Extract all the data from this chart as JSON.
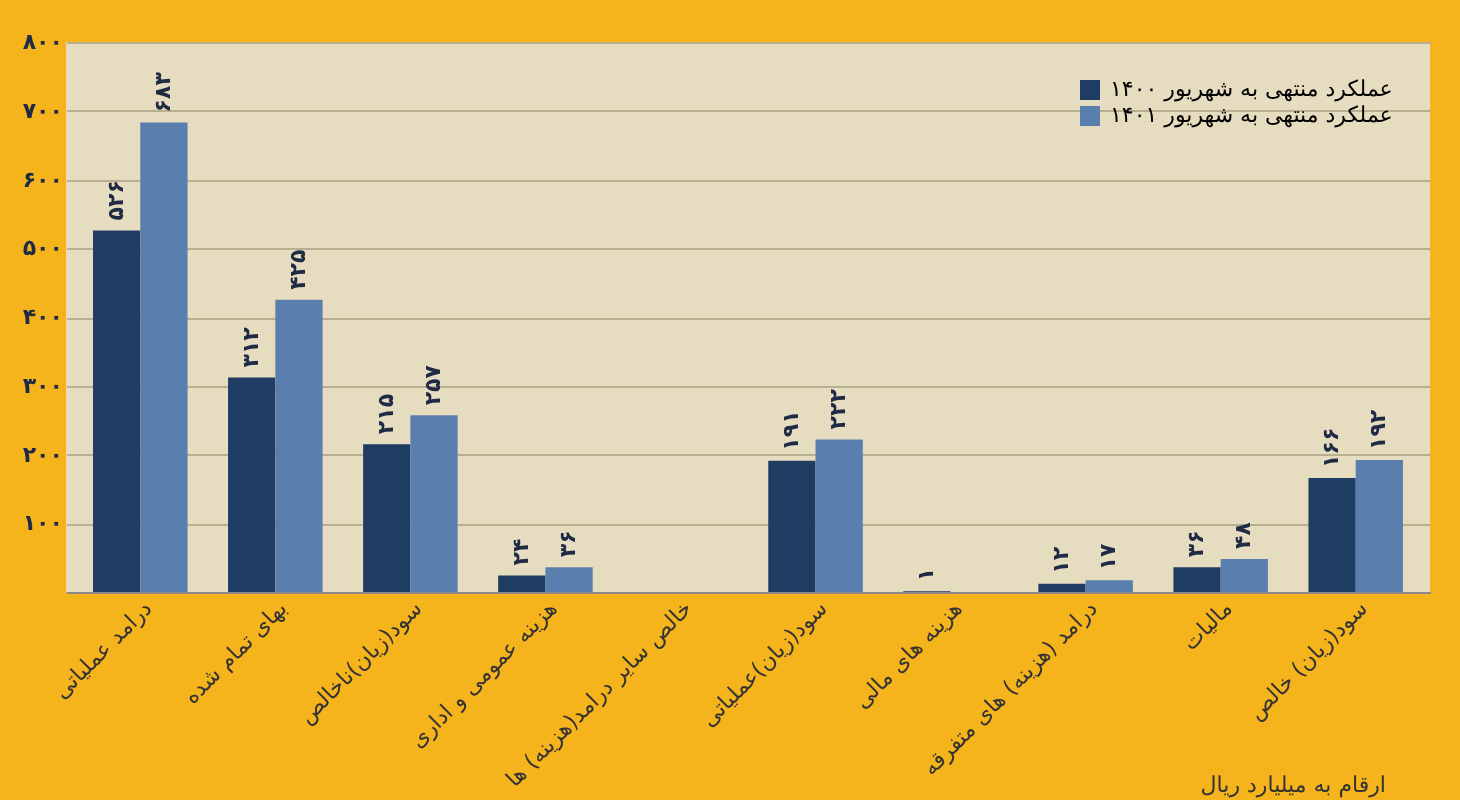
{
  "chart_data": {
    "type": "bar",
    "categories": [
      "درامد عملیاتی",
      "بهای تمام شده",
      "سود(زیان)ناخالص",
      "هزینه عمومی و اداری",
      "خالص سایر درامد(هزینه) ها",
      "سود(زیان)عملیاتی",
      "هزینه های مالی",
      "درامد (هزینه) های متفرقه",
      "مالیات",
      "سود(زیان) خالص"
    ],
    "series": [
      {
        "name": "عملکرد منتهی به شهریور ۱۴۰۰",
        "color": "#1f3d63",
        "values": [
          526,
          312,
          215,
          24,
          null,
          191,
          1,
          12,
          36,
          166
        ],
        "value_labels": [
          "۵۲۶",
          "۳۱۲",
          "۲۱۵",
          "۲۴",
          null,
          "۱۹۱",
          "۱",
          "۱۲",
          "۳۶",
          "۱۶۶"
        ]
      },
      {
        "name": "عملکرد منتهی به شهریور ۱۴۰۱",
        "color": "#5a7fae",
        "values": [
          683,
          425,
          257,
          36,
          null,
          222,
          null,
          17,
          48,
          192
        ],
        "value_labels": [
          "۶۸۳",
          "۴۲۵",
          "۲۵۷",
          "۳۶",
          null,
          "۲۲۲",
          null,
          "۱۷",
          "۴۸",
          "۱۹۲"
        ]
      }
    ],
    "ylim": [
      0,
      800
    ],
    "yticks": [
      {
        "value": 0,
        "label": null
      },
      {
        "value": 100,
        "label": "۱۰۰"
      },
      {
        "value": 200,
        "label": "۲۰۰"
      },
      {
        "value": 300,
        "label": "۳۰۰"
      },
      {
        "value": 400,
        "label": "۴۰۰"
      },
      {
        "value": 500,
        "label": "۵۰۰"
      },
      {
        "value": 600,
        "label": "۶۰۰"
      },
      {
        "value": 700,
        "label": "۷۰۰"
      },
      {
        "value": 800,
        "label": "۸۰۰"
      }
    ],
    "grid": "y",
    "legend": "top right",
    "annotations": [
      "ارقام به میلیارد ریال"
    ]
  }
}
